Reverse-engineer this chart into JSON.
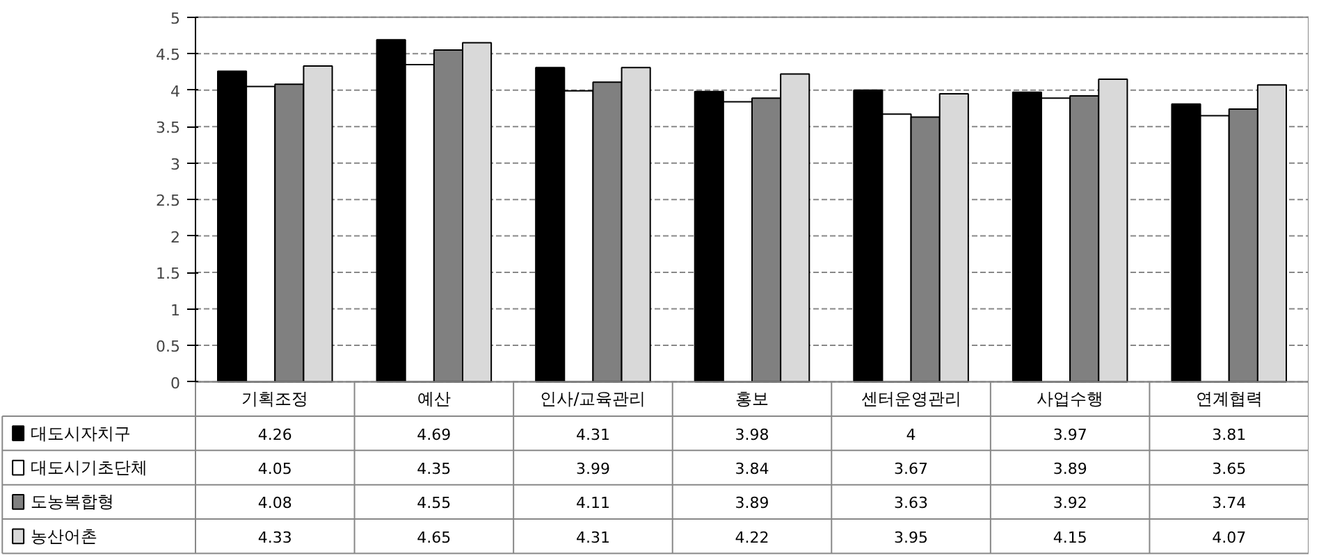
{
  "chart_data": {
    "type": "bar",
    "categories": [
      "기획조정",
      "예산",
      "인사/교육관리",
      "홍보",
      "센터운영관리",
      "사업수행",
      "연계협력"
    ],
    "series": [
      {
        "name": "대도시자치구",
        "color": "#000000",
        "values": [
          4.26,
          4.69,
          4.31,
          3.98,
          4,
          3.97,
          3.81
        ]
      },
      {
        "name": "대도시기초단체",
        "color": "#ffffff",
        "values": [
          4.05,
          4.35,
          3.99,
          3.84,
          3.67,
          3.89,
          3.65
        ]
      },
      {
        "name": "도농복합형",
        "color": "#808080",
        "values": [
          4.08,
          4.55,
          4.11,
          3.89,
          3.63,
          3.92,
          3.74
        ]
      },
      {
        "name": "농산어촌",
        "color": "#d9d9d9",
        "values": [
          4.33,
          4.65,
          4.31,
          4.22,
          3.95,
          4.15,
          4.07
        ]
      }
    ],
    "ylim": [
      0,
      5
    ],
    "yticks": [
      0,
      0.5,
      1,
      1.5,
      2,
      2.5,
      3,
      3.5,
      4,
      4.5,
      5
    ],
    "grid": "y",
    "legend": "bottom",
    "data_labels": true
  }
}
